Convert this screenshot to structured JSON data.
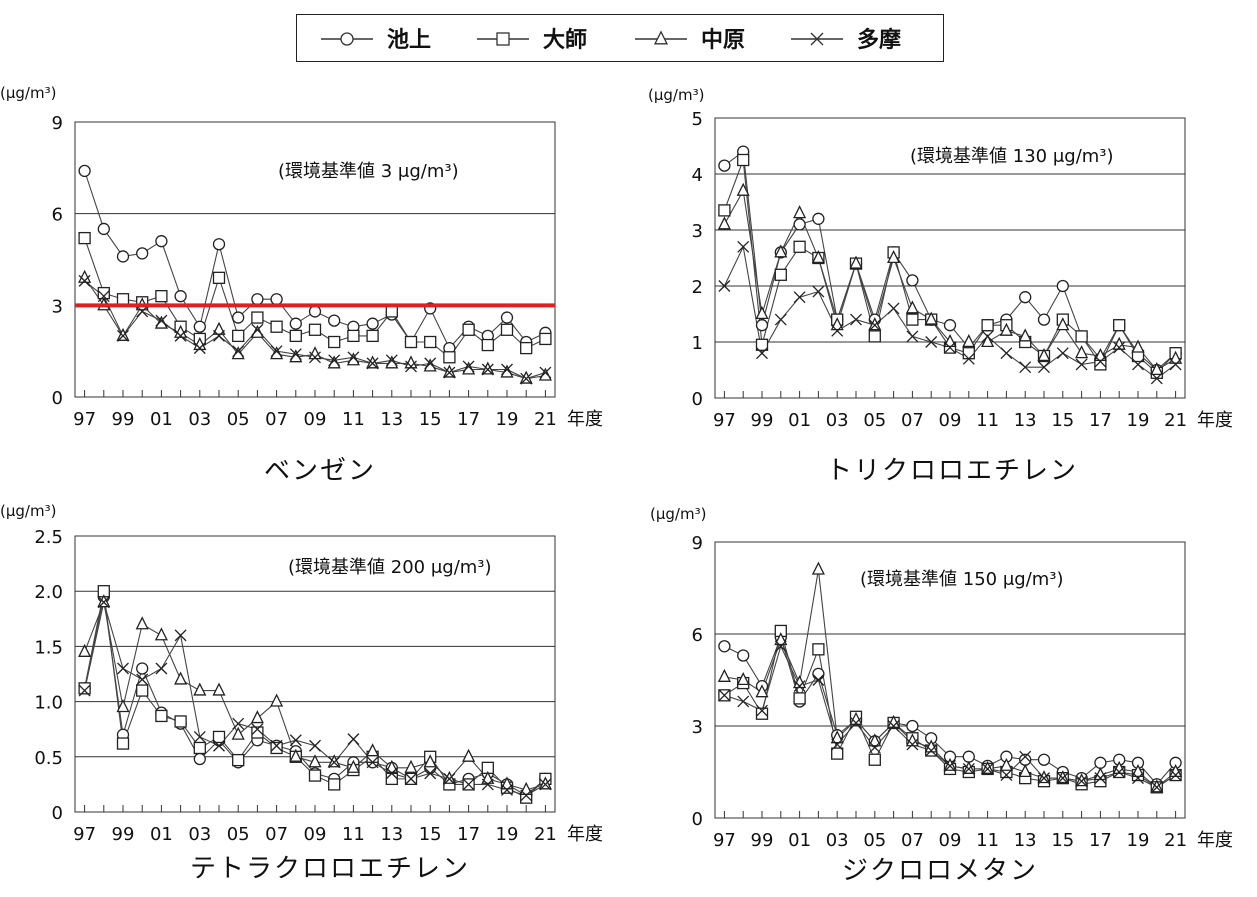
{
  "legend": {
    "items": [
      {
        "label": "池上",
        "marker": "circle"
      },
      {
        "label": "大師",
        "marker": "square"
      },
      {
        "label": "中原",
        "marker": "triangle"
      },
      {
        "label": "多摩",
        "marker": "x"
      }
    ]
  },
  "colors": {
    "series_line": "#444444",
    "grid": "#333333",
    "standard_line": "#e02020"
  },
  "chart_data": [
    {
      "type": "line",
      "caption": "ベンゼン",
      "unit_label": "(μg/m³)",
      "standard_label": "(環境基準値 3 μg/m³)",
      "standard_value": 3,
      "x_label": "年度",
      "x": [
        "97",
        "98",
        "99",
        "00",
        "01",
        "02",
        "03",
        "04",
        "05",
        "06",
        "07",
        "08",
        "09",
        "10",
        "11",
        "12",
        "13",
        "14",
        "15",
        "16",
        "17",
        "18",
        "19",
        "20",
        "21"
      ],
      "x_tick_labels": [
        "97",
        "99",
        "01",
        "03",
        "05",
        "07",
        "09",
        "11",
        "13",
        "15",
        "17",
        "19",
        "21"
      ],
      "ylim": [
        0,
        9
      ],
      "y_ticks": [
        "0",
        "3",
        "6",
        "9"
      ],
      "grid": true,
      "series": [
        {
          "name": "池上",
          "marker": "circle",
          "values": [
            7.4,
            5.5,
            4.6,
            4.7,
            5.1,
            3.3,
            2.3,
            5.0,
            2.6,
            3.2,
            3.2,
            2.4,
            2.8,
            2.5,
            2.3,
            2.4,
            2.7,
            1.8,
            2.9,
            1.6,
            2.3,
            2.0,
            2.6,
            1.8,
            2.1
          ]
        },
        {
          "name": "大師",
          "marker": "square",
          "values": [
            5.2,
            3.4,
            3.2,
            3.1,
            3.3,
            2.3,
            1.9,
            3.9,
            2.0,
            2.6,
            2.3,
            2.0,
            2.2,
            1.8,
            2.0,
            2.0,
            2.8,
            1.8,
            1.8,
            1.3,
            2.2,
            1.7,
            2.2,
            1.6,
            1.9
          ]
        },
        {
          "name": "中原",
          "marker": "triangle",
          "values": [
            3.9,
            3.0,
            2.0,
            3.0,
            2.4,
            2.1,
            1.7,
            2.2,
            1.4,
            2.1,
            1.4,
            1.3,
            1.4,
            1.1,
            1.2,
            1.1,
            1.1,
            1.1,
            1.0,
            0.8,
            0.9,
            0.9,
            0.8,
            0.6,
            0.7
          ]
        },
        {
          "name": "多摩",
          "marker": "x",
          "values": [
            3.8,
            3.3,
            2.0,
            2.8,
            2.5,
            2.0,
            1.6,
            2.0,
            1.5,
            2.2,
            1.5,
            1.4,
            1.3,
            1.2,
            1.3,
            1.1,
            1.2,
            1.0,
            1.1,
            0.8,
            1.0,
            0.9,
            0.9,
            0.6,
            0.8
          ]
        }
      ]
    },
    {
      "type": "line",
      "caption": "トリクロロエチレン",
      "unit_label": "(μg/m³)",
      "standard_label": "(環境基準値 130 μg/m³)",
      "x_label": "年度",
      "x": [
        "97",
        "98",
        "99",
        "00",
        "01",
        "02",
        "03",
        "04",
        "05",
        "06",
        "07",
        "08",
        "09",
        "10",
        "11",
        "12",
        "13",
        "14",
        "15",
        "16",
        "17",
        "18",
        "19",
        "20",
        "21"
      ],
      "x_tick_labels": [
        "97",
        "99",
        "01",
        "03",
        "05",
        "07",
        "09",
        "11",
        "13",
        "15",
        "17",
        "19",
        "21"
      ],
      "ylim": [
        0,
        5
      ],
      "y_ticks": [
        "0",
        "1",
        "2",
        "3",
        "4",
        "5"
      ],
      "grid": true,
      "series": [
        {
          "name": "池上",
          "marker": "circle",
          "values": [
            4.15,
            4.4,
            1.3,
            2.6,
            3.1,
            3.2,
            1.4,
            2.4,
            1.4,
            2.6,
            2.1,
            1.4,
            1.3,
            0.9,
            1.3,
            1.4,
            1.8,
            1.4,
            2.0,
            1.1,
            0.7,
            1.3,
            0.8,
            0.5,
            0.8
          ]
        },
        {
          "name": "大師",
          "marker": "square",
          "values": [
            3.35,
            4.25,
            0.95,
            2.2,
            2.7,
            2.5,
            1.4,
            2.4,
            1.1,
            2.6,
            1.4,
            1.4,
            0.9,
            0.8,
            1.3,
            1.3,
            1.0,
            0.75,
            1.4,
            1.1,
            0.6,
            1.3,
            0.75,
            0.45,
            0.8
          ]
        },
        {
          "name": "中原",
          "marker": "triangle",
          "values": [
            3.1,
            3.7,
            1.5,
            2.6,
            3.3,
            2.5,
            1.3,
            2.4,
            1.3,
            2.5,
            1.6,
            1.4,
            1.0,
            1.0,
            1.0,
            1.2,
            1.1,
            0.75,
            1.3,
            0.8,
            0.75,
            0.95,
            0.9,
            0.5,
            0.7
          ]
        },
        {
          "name": "多摩",
          "marker": "x",
          "values": [
            2.0,
            2.7,
            0.8,
            1.4,
            1.8,
            1.9,
            1.2,
            1.4,
            1.3,
            1.6,
            1.1,
            1.0,
            0.9,
            0.7,
            1.1,
            0.8,
            0.55,
            0.55,
            0.8,
            0.6,
            0.65,
            0.9,
            0.6,
            0.35,
            0.6
          ]
        }
      ]
    },
    {
      "type": "line",
      "caption": "テトラクロロエチレン",
      "unit_label": "(μg/m³)",
      "standard_label": "(環境基準値 200 μg/m³)",
      "x_label": "年度",
      "x": [
        "97",
        "98",
        "99",
        "00",
        "01",
        "02",
        "03",
        "04",
        "05",
        "06",
        "07",
        "08",
        "09",
        "10",
        "11",
        "12",
        "13",
        "14",
        "15",
        "16",
        "17",
        "18",
        "19",
        "20",
        "21"
      ],
      "x_tick_labels": [
        "97",
        "99",
        "01",
        "03",
        "05",
        "07",
        "09",
        "11",
        "13",
        "15",
        "17",
        "19",
        "21"
      ],
      "ylim": [
        0,
        2.5
      ],
      "y_ticks": [
        "0",
        "0.5",
        "1.0",
        "1.5",
        "2.0",
        "2.5"
      ],
      "grid": true,
      "series": [
        {
          "name": "池上",
          "marker": "circle",
          "values": [
            1.12,
            1.95,
            0.7,
            1.3,
            0.9,
            0.8,
            0.48,
            0.65,
            0.45,
            0.65,
            0.6,
            0.55,
            0.35,
            0.3,
            0.45,
            0.45,
            0.4,
            0.3,
            0.4,
            0.25,
            0.3,
            0.35,
            0.25,
            0.15,
            0.3
          ]
        },
        {
          "name": "大師",
          "marker": "square",
          "values": [
            1.12,
            2.0,
            0.62,
            1.1,
            0.87,
            0.82,
            0.58,
            0.68,
            0.47,
            0.72,
            0.58,
            0.5,
            0.33,
            0.25,
            0.38,
            0.5,
            0.3,
            0.3,
            0.5,
            0.25,
            0.25,
            0.4,
            0.22,
            0.13,
            0.3
          ]
        },
        {
          "name": "中原",
          "marker": "triangle",
          "values": [
            1.45,
            1.9,
            0.95,
            1.7,
            1.6,
            1.2,
            1.1,
            1.1,
            0.7,
            0.85,
            1.0,
            0.5,
            0.45,
            0.45,
            0.4,
            0.55,
            0.4,
            0.4,
            0.45,
            0.3,
            0.5,
            0.3,
            0.25,
            0.2,
            0.25
          ]
        },
        {
          "name": "多摩",
          "marker": "x",
          "values": [
            1.1,
            1.9,
            1.3,
            1.2,
            1.3,
            1.6,
            0.68,
            0.6,
            0.8,
            0.75,
            0.6,
            0.65,
            0.6,
            0.45,
            0.66,
            0.45,
            0.35,
            0.3,
            0.35,
            0.3,
            0.25,
            0.25,
            0.2,
            0.15,
            0.25
          ]
        }
      ]
    },
    {
      "type": "line",
      "caption": "ジクロロメタン",
      "unit_label": "(μg/m³)",
      "standard_label": "(環境基準値 150 μg/m³)",
      "x_label": "年度",
      "x": [
        "97",
        "98",
        "99",
        "00",
        "01",
        "02",
        "03",
        "04",
        "05",
        "06",
        "07",
        "08",
        "09",
        "10",
        "11",
        "12",
        "13",
        "14",
        "15",
        "16",
        "17",
        "18",
        "19",
        "20",
        "21"
      ],
      "x_tick_labels": [
        "97",
        "99",
        "01",
        "03",
        "05",
        "07",
        "09",
        "11",
        "13",
        "15",
        "17",
        "19",
        "21"
      ],
      "ylim": [
        0,
        9
      ],
      "y_ticks": [
        "0",
        "3",
        "6",
        "9"
      ],
      "grid": true,
      "series": [
        {
          "name": "池上",
          "marker": "circle",
          "values": [
            5.6,
            5.3,
            4.3,
            5.9,
            3.8,
            4.7,
            2.7,
            3.2,
            2.5,
            3.1,
            3.0,
            2.6,
            2.0,
            2.0,
            1.7,
            2.0,
            1.9,
            1.9,
            1.5,
            1.3,
            1.8,
            1.9,
            1.8,
            1.1,
            1.8
          ]
        },
        {
          "name": "大師",
          "marker": "square",
          "values": [
            4.0,
            4.4,
            3.4,
            6.1,
            3.9,
            5.5,
            2.1,
            3.3,
            1.9,
            3.1,
            2.6,
            2.2,
            1.6,
            1.5,
            1.6,
            1.5,
            1.3,
            1.2,
            1.3,
            1.1,
            1.2,
            1.5,
            1.4,
            1.0,
            1.4
          ]
        },
        {
          "name": "中原",
          "marker": "triangle",
          "values": [
            4.6,
            4.5,
            4.1,
            5.8,
            4.4,
            8.1,
            2.6,
            3.2,
            2.5,
            3.1,
            2.5,
            2.3,
            1.7,
            1.6,
            1.6,
            1.7,
            1.5,
            1.3,
            1.3,
            1.2,
            1.4,
            1.6,
            1.5,
            1.0,
            1.5
          ]
        },
        {
          "name": "多摩",
          "marker": "x",
          "values": [
            4.0,
            3.8,
            3.5,
            5.6,
            4.3,
            4.5,
            2.4,
            3.1,
            2.3,
            3.0,
            2.4,
            2.2,
            1.7,
            1.6,
            1.6,
            1.4,
            2.0,
            1.3,
            1.3,
            1.2,
            1.3,
            1.5,
            1.3,
            1.0,
            1.4
          ]
        }
      ]
    }
  ]
}
